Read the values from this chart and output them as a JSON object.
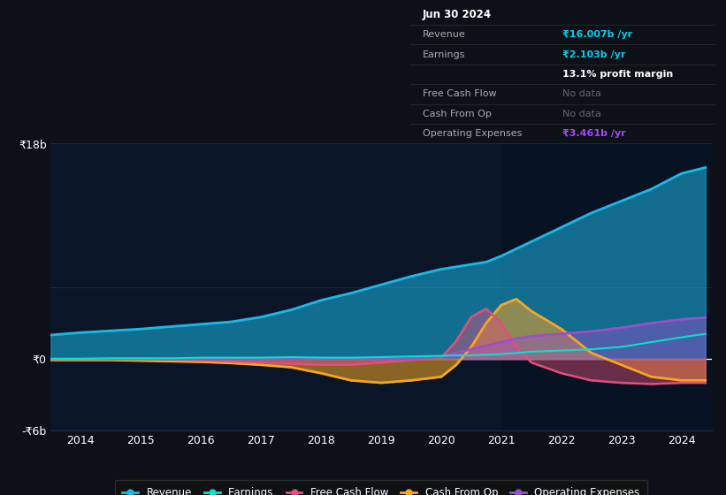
{
  "bg_color": "#0d1117",
  "chart_bg": "#0a1628",
  "grid_color": "#1e3050",
  "years": [
    2013.5,
    2014.0,
    2014.5,
    2015.0,
    2015.5,
    2016.0,
    2016.5,
    2017.0,
    2017.5,
    2018.0,
    2018.5,
    2019.0,
    2019.5,
    2020.0,
    2020.25,
    2020.5,
    2020.75,
    2021.0,
    2021.25,
    2021.5,
    2022.0,
    2022.5,
    2023.0,
    2023.5,
    2024.0,
    2024.4
  ],
  "revenue": [
    2.0,
    2.2,
    2.35,
    2.5,
    2.7,
    2.9,
    3.1,
    3.5,
    4.1,
    4.9,
    5.5,
    6.2,
    6.9,
    7.5,
    7.7,
    7.9,
    8.1,
    8.6,
    9.2,
    9.8,
    11.0,
    12.2,
    13.2,
    14.2,
    15.5,
    16.0
  ],
  "earnings": [
    0.0,
    0.0,
    0.05,
    0.05,
    0.05,
    0.1,
    0.1,
    0.1,
    0.15,
    0.1,
    0.1,
    0.15,
    0.2,
    0.25,
    0.3,
    0.3,
    0.35,
    0.4,
    0.5,
    0.6,
    0.7,
    0.8,
    1.0,
    1.4,
    1.8,
    2.1
  ],
  "free_cash_flow": [
    0.0,
    0.0,
    0.0,
    0.0,
    -0.05,
    -0.1,
    -0.2,
    -0.3,
    -0.4,
    -0.5,
    -0.5,
    -0.3,
    -0.1,
    0.1,
    1.5,
    3.5,
    4.2,
    3.0,
    1.0,
    -0.3,
    -1.2,
    -1.8,
    -2.0,
    -2.1,
    -2.0,
    -2.0
  ],
  "cash_from_op": [
    -0.1,
    -0.1,
    -0.1,
    -0.15,
    -0.2,
    -0.25,
    -0.35,
    -0.5,
    -0.7,
    -1.2,
    -1.8,
    -2.0,
    -1.8,
    -1.5,
    -0.5,
    1.0,
    3.0,
    4.5,
    5.0,
    4.0,
    2.5,
    0.5,
    -0.5,
    -1.5,
    -1.8,
    -1.8
  ],
  "op_expenses": [
    0.0,
    0.0,
    0.0,
    0.0,
    0.0,
    0.0,
    0.0,
    0.0,
    0.0,
    0.0,
    0.0,
    0.0,
    0.0,
    0.2,
    0.5,
    0.8,
    1.1,
    1.4,
    1.7,
    1.9,
    2.1,
    2.3,
    2.6,
    3.0,
    3.3,
    3.46
  ],
  "revenue_color": "#1ab8e8",
  "earnings_color": "#00e5cc",
  "fcf_color": "#e0507a",
  "cfop_color": "#f5a623",
  "opex_color": "#9b4fc8",
  "ylim_min": -6,
  "ylim_max": 18,
  "yticks": [
    -6,
    0,
    18
  ],
  "ytick_labels": [
    "-₹6b",
    "₹0",
    "₹18b"
  ],
  "xticks": [
    2014,
    2015,
    2016,
    2017,
    2018,
    2019,
    2020,
    2021,
    2022,
    2023,
    2024
  ],
  "info_box": {
    "date": "Jun 30 2024",
    "revenue_val": "₹16.007b /yr",
    "earnings_val": "₹2.103b /yr",
    "margin": "13.1% profit margin",
    "fcf": "No data",
    "cfop": "No data",
    "opex_val": "₹3.461b /yr"
  }
}
